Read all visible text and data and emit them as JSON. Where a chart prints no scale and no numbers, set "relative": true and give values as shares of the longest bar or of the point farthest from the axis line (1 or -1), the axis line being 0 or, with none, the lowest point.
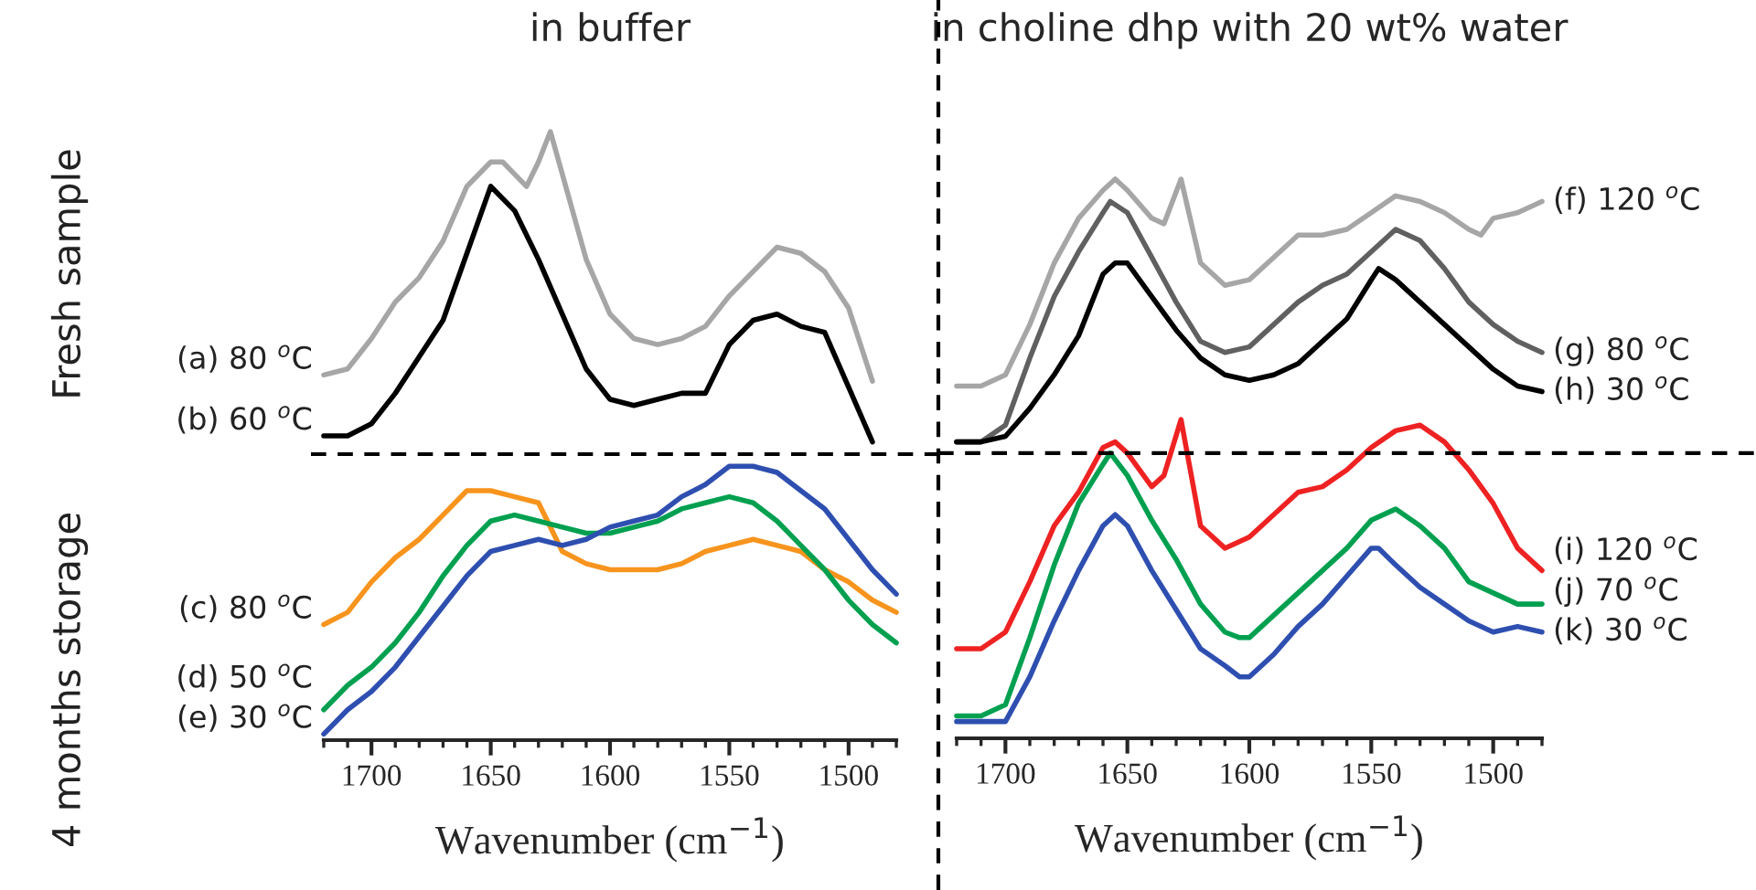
{
  "chart_data": [
    {
      "type": "line",
      "relative": true,
      "title": "in buffer",
      "xlabel": "Wavenumber (cm$^{−1}$)",
      "xlim": [
        1720,
        1480
      ],
      "xticks": [
        1700,
        1650,
        1600,
        1550,
        1500
      ],
      "tick_labels": "x",
      "annotations": [
        "Fresh sample",
        "4 months storage"
      ],
      "ref_lines": [
        {
          "axis": "y",
          "value": 0.47,
          "color": "#000000",
          "line_style": "dashed"
        }
      ],
      "series": [
        {
          "name": "(a) 80 $^{o}$C",
          "color": "#a6a6a6",
          "x": [
            1720,
            1710,
            1700,
            1690,
            1680,
            1670,
            1660,
            1650,
            1645,
            1640,
            1635,
            1630,
            1625,
            1620,
            1610,
            1600,
            1590,
            1580,
            1570,
            1560,
            1550,
            1540,
            1530,
            1520,
            1510,
            1500,
            1490
          ],
          "values": [
            0.6,
            0.61,
            0.66,
            0.72,
            0.76,
            0.82,
            0.91,
            0.95,
            0.95,
            0.93,
            0.91,
            0.95,
            1.0,
            0.93,
            0.79,
            0.7,
            0.66,
            0.65,
            0.66,
            0.68,
            0.73,
            0.77,
            0.81,
            0.8,
            0.77,
            0.71,
            0.59
          ]
        },
        {
          "name": "(b) 60 $^{o}$C",
          "color": "#000000",
          "x": [
            1720,
            1710,
            1700,
            1690,
            1680,
            1670,
            1660,
            1650,
            1640,
            1630,
            1620,
            1610,
            1600,
            1590,
            1580,
            1570,
            1560,
            1550,
            1540,
            1530,
            1520,
            1510,
            1500,
            1490
          ],
          "values": [
            0.5,
            0.5,
            0.52,
            0.57,
            0.63,
            0.69,
            0.8,
            0.91,
            0.87,
            0.79,
            0.7,
            0.61,
            0.56,
            0.55,
            0.56,
            0.57,
            0.57,
            0.65,
            0.69,
            0.7,
            0.68,
            0.67,
            0.58,
            0.49
          ]
        },
        {
          "name": "(c) 80 $^{o}$C",
          "color": "#f7941d",
          "x": [
            1720,
            1710,
            1700,
            1690,
            1680,
            1670,
            1660,
            1650,
            1640,
            1630,
            1620,
            1610,
            1600,
            1590,
            1580,
            1570,
            1560,
            1550,
            1540,
            1530,
            1520,
            1510,
            1500,
            1490,
            1480
          ],
          "values": [
            0.19,
            0.21,
            0.26,
            0.3,
            0.33,
            0.37,
            0.41,
            0.41,
            0.4,
            0.39,
            0.31,
            0.29,
            0.28,
            0.28,
            0.28,
            0.29,
            0.31,
            0.32,
            0.33,
            0.32,
            0.31,
            0.28,
            0.26,
            0.23,
            0.21
          ]
        },
        {
          "name": "(d) 50 $^{o}$C",
          "color": "#00a050",
          "x": [
            1720,
            1710,
            1700,
            1690,
            1680,
            1670,
            1660,
            1650,
            1640,
            1630,
            1620,
            1610,
            1600,
            1590,
            1580,
            1570,
            1560,
            1550,
            1540,
            1530,
            1520,
            1510,
            1500,
            1490,
            1480
          ],
          "values": [
            0.05,
            0.09,
            0.12,
            0.16,
            0.21,
            0.27,
            0.32,
            0.36,
            0.37,
            0.36,
            0.35,
            0.34,
            0.34,
            0.35,
            0.36,
            0.38,
            0.39,
            0.4,
            0.39,
            0.36,
            0.32,
            0.28,
            0.23,
            0.19,
            0.16
          ]
        },
        {
          "name": "(e) 30 $^{o}$C",
          "color": "#2e4fb0",
          "x": [
            1720,
            1710,
            1700,
            1690,
            1680,
            1670,
            1660,
            1650,
            1640,
            1630,
            1620,
            1610,
            1600,
            1590,
            1580,
            1570,
            1560,
            1550,
            1540,
            1530,
            1520,
            1510,
            1500,
            1490,
            1480
          ],
          "values": [
            0.01,
            0.05,
            0.08,
            0.12,
            0.17,
            0.22,
            0.27,
            0.31,
            0.32,
            0.33,
            0.32,
            0.33,
            0.35,
            0.36,
            0.37,
            0.4,
            0.42,
            0.45,
            0.45,
            0.44,
            0.41,
            0.38,
            0.33,
            0.28,
            0.24
          ]
        }
      ]
    },
    {
      "type": "line",
      "relative": true,
      "title": "in choline dhp with 20 wt% water",
      "xlabel": "Wavenumber (cm$^{−1}$)",
      "xlim": [
        1720,
        1480
      ],
      "xticks": [
        1700,
        1650,
        1600,
        1550,
        1500
      ],
      "tick_labels": "x",
      "ref_lines": [
        {
          "axis": "y",
          "value": 0.51,
          "color": "#000000",
          "line_style": "dashed"
        }
      ],
      "series": [
        {
          "name": "(f) 120 $^{o}$C",
          "color": "#a6a6a6",
          "x": [
            1720,
            1710,
            1700,
            1690,
            1680,
            1670,
            1660,
            1655,
            1650,
            1640,
            1635,
            1628,
            1620,
            1610,
            1600,
            1590,
            1580,
            1570,
            1560,
            1550,
            1540,
            1530,
            1520,
            1510,
            1505,
            1500,
            1490,
            1480
          ],
          "values": [
            0.63,
            0.63,
            0.65,
            0.74,
            0.85,
            0.93,
            0.98,
            1.0,
            0.98,
            0.93,
            0.92,
            1.0,
            0.85,
            0.81,
            0.82,
            0.86,
            0.9,
            0.9,
            0.91,
            0.94,
            0.97,
            0.96,
            0.94,
            0.91,
            0.9,
            0.93,
            0.94,
            0.96
          ]
        },
        {
          "name": "(g) 80 $^{o}$C",
          "color": "#606060",
          "x": [
            1720,
            1710,
            1700,
            1690,
            1680,
            1670,
            1660,
            1657,
            1650,
            1640,
            1630,
            1620,
            1610,
            1600,
            1590,
            1580,
            1570,
            1560,
            1550,
            1540,
            1530,
            1520,
            1510,
            1500,
            1490,
            1480
          ],
          "values": [
            0.53,
            0.53,
            0.56,
            0.68,
            0.79,
            0.87,
            0.94,
            0.96,
            0.94,
            0.86,
            0.78,
            0.71,
            0.69,
            0.7,
            0.74,
            0.78,
            0.81,
            0.83,
            0.87,
            0.91,
            0.89,
            0.84,
            0.78,
            0.74,
            0.71,
            0.69
          ]
        },
        {
          "name": "(h) 30 $^{o}$C",
          "color": "#000000",
          "x": [
            1720,
            1710,
            1700,
            1690,
            1680,
            1670,
            1660,
            1655,
            1650,
            1640,
            1630,
            1620,
            1610,
            1600,
            1590,
            1580,
            1570,
            1560,
            1550,
            1547,
            1540,
            1530,
            1520,
            1510,
            1500,
            1490,
            1480
          ],
          "values": [
            0.53,
            0.53,
            0.54,
            0.59,
            0.65,
            0.72,
            0.83,
            0.85,
            0.85,
            0.79,
            0.73,
            0.68,
            0.65,
            0.64,
            0.65,
            0.67,
            0.71,
            0.75,
            0.82,
            0.84,
            0.82,
            0.78,
            0.74,
            0.7,
            0.66,
            0.63,
            0.62
          ]
        },
        {
          "name": "(i) 120 $^{o}$C",
          "color": "#ee2222",
          "x": [
            1720,
            1710,
            1700,
            1690,
            1680,
            1670,
            1660,
            1655,
            1650,
            1640,
            1635,
            1628,
            1620,
            1610,
            1600,
            1590,
            1580,
            1570,
            1560,
            1550,
            1540,
            1530,
            1520,
            1510,
            1500,
            1490,
            1480
          ],
          "values": [
            0.16,
            0.16,
            0.19,
            0.28,
            0.38,
            0.44,
            0.52,
            0.53,
            0.51,
            0.45,
            0.47,
            0.57,
            0.38,
            0.34,
            0.36,
            0.4,
            0.44,
            0.45,
            0.48,
            0.52,
            0.55,
            0.56,
            0.53,
            0.48,
            0.42,
            0.34,
            0.3
          ]
        },
        {
          "name": "(j) 70 $^{o}$C",
          "color": "#00a050",
          "x": [
            1720,
            1710,
            1700,
            1690,
            1680,
            1670,
            1660,
            1657,
            1650,
            1640,
            1630,
            1620,
            1610,
            1604,
            1600,
            1590,
            1580,
            1570,
            1560,
            1550,
            1540,
            1530,
            1520,
            1510,
            1500,
            1490,
            1480
          ],
          "values": [
            0.04,
            0.04,
            0.06,
            0.18,
            0.31,
            0.42,
            0.49,
            0.51,
            0.47,
            0.39,
            0.32,
            0.24,
            0.19,
            0.18,
            0.18,
            0.22,
            0.26,
            0.3,
            0.34,
            0.39,
            0.41,
            0.38,
            0.34,
            0.28,
            0.26,
            0.24,
            0.24
          ]
        },
        {
          "name": "(k) 30 $^{o}$C",
          "color": "#2e4fb0",
          "x": [
            1720,
            1710,
            1700,
            1690,
            1680,
            1670,
            1660,
            1655,
            1650,
            1640,
            1630,
            1620,
            1610,
            1604,
            1600,
            1590,
            1580,
            1570,
            1560,
            1550,
            1547,
            1540,
            1530,
            1520,
            1510,
            1500,
            1490,
            1480
          ],
          "values": [
            0.03,
            0.03,
            0.03,
            0.11,
            0.21,
            0.3,
            0.38,
            0.4,
            0.38,
            0.3,
            0.23,
            0.16,
            0.13,
            0.11,
            0.11,
            0.15,
            0.2,
            0.24,
            0.29,
            0.34,
            0.34,
            0.31,
            0.27,
            0.24,
            0.21,
            0.19,
            0.2,
            0.19
          ]
        }
      ]
    }
  ]
}
